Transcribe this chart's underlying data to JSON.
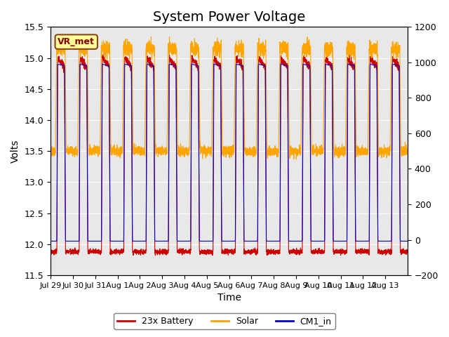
{
  "title": "System Power Voltage",
  "xlabel": "Time",
  "ylabel": "Volts",
  "ylim_left": [
    11.5,
    15.5
  ],
  "ylim_right": [
    -200,
    1200
  ],
  "yticks_left": [
    11.5,
    12.0,
    12.5,
    13.0,
    13.5,
    14.0,
    14.5,
    15.0,
    15.5
  ],
  "yticks_right": [
    -200,
    0,
    200,
    400,
    600,
    800,
    1000,
    1200
  ],
  "x_tick_labels": [
    "Jul 29",
    "Jul 30",
    "Jul 31",
    "Aug 1",
    "Aug 2",
    "Aug 3",
    "Aug 4",
    "Aug 5",
    "Aug 6",
    "Aug 7",
    "Aug 8",
    "Aug 9",
    "Aug 10",
    "Aug 11",
    "Aug 12",
    "Aug 13"
  ],
  "annotation_text": "VR_met",
  "annotation_bbox_facecolor": "#FFFF99",
  "annotation_bbox_edgecolor": "#8B4513",
  "legend_labels": [
    "23x Battery",
    "Solar",
    "CM1_in"
  ],
  "legend_colors": [
    "#CC0000",
    "#FFA500",
    "#0000CC"
  ],
  "line_colors": [
    "#CC0000",
    "#FFA500",
    "#0000CC"
  ],
  "n_days": 16,
  "background_color": "#E8E8E8",
  "fig_facecolor": "#FFFFFF",
  "title_fontsize": 14,
  "label_fontsize": 10,
  "tick_fontsize": 9
}
